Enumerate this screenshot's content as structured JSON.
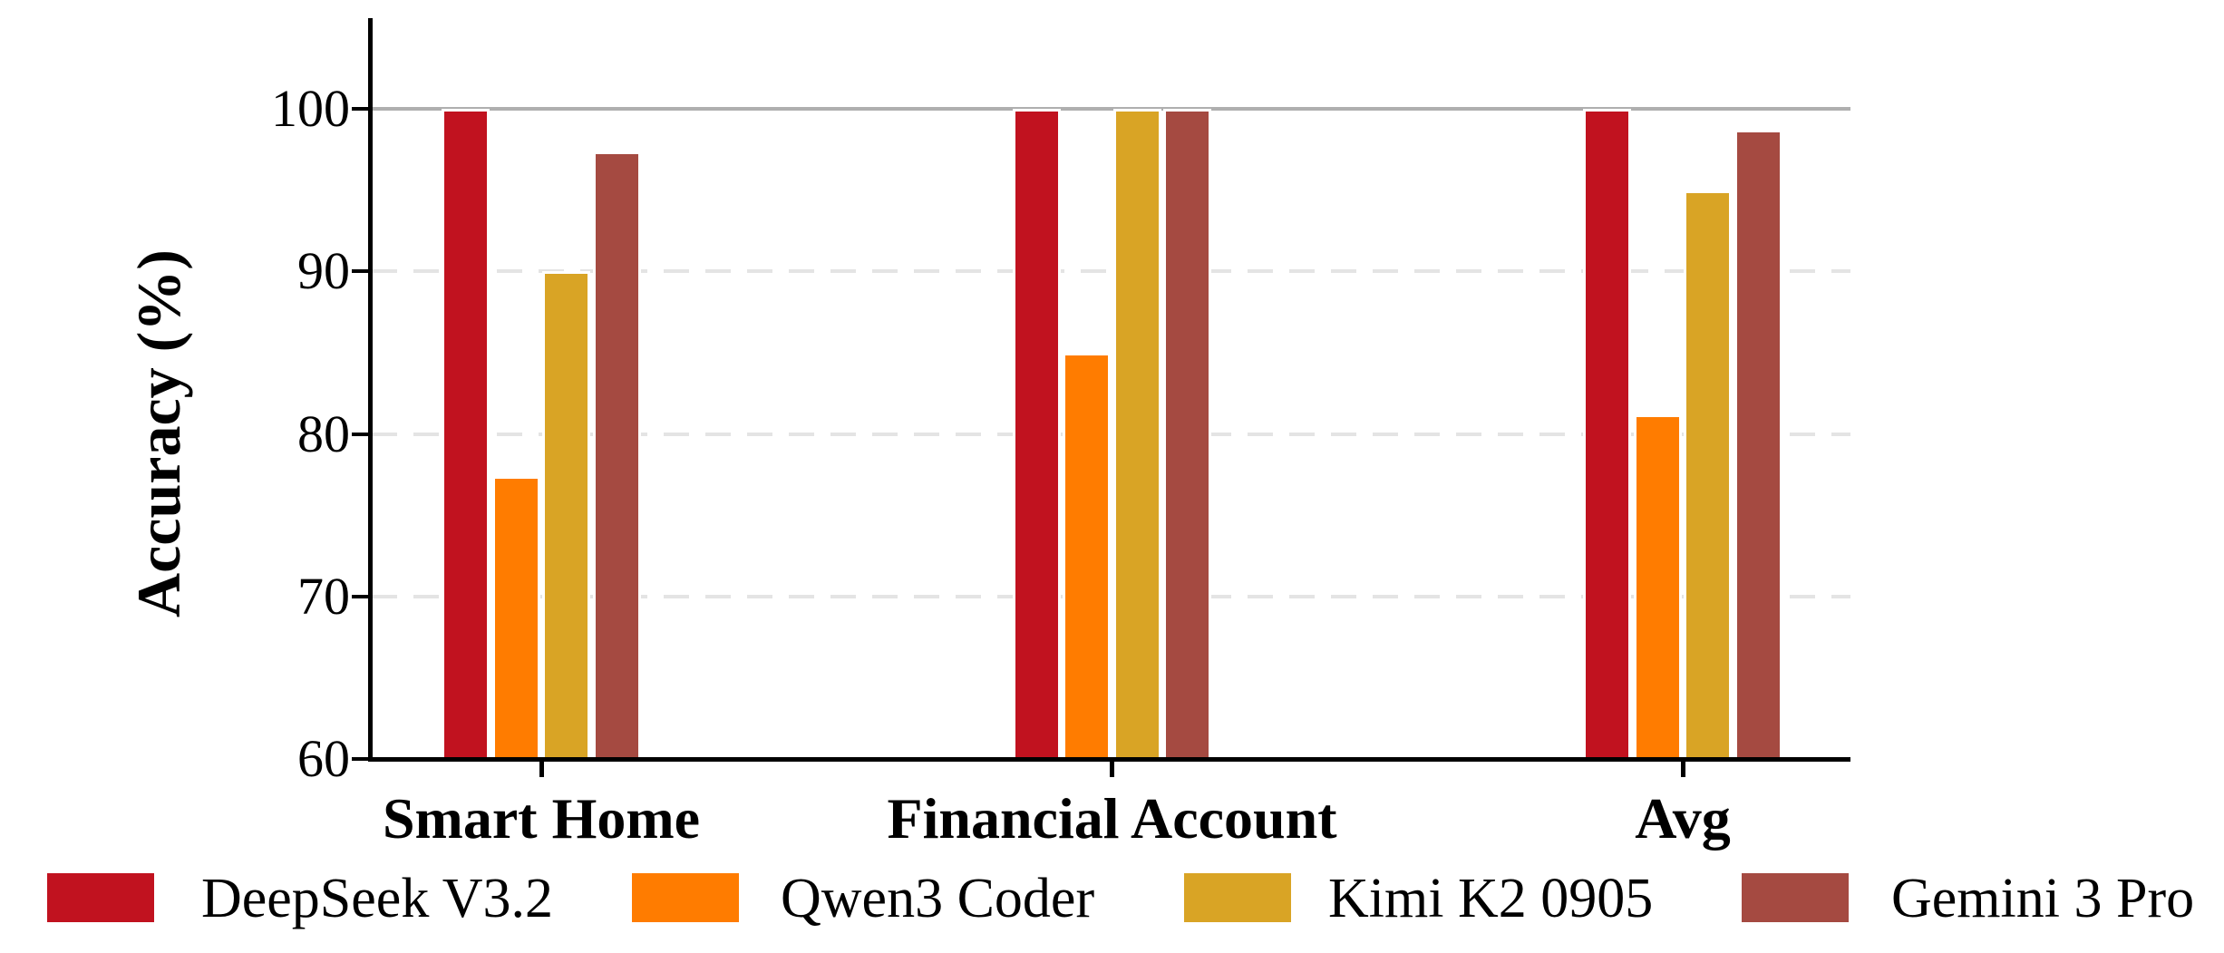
{
  "chart_data": {
    "type": "bar",
    "title": "",
    "xlabel": "",
    "ylabel": "Accuracy (%)",
    "ylim": [
      60,
      105
    ],
    "yticks": [
      60,
      70,
      80,
      90,
      100
    ],
    "categories": [
      "Smart Home",
      "Financial Account",
      "Avg"
    ],
    "series": [
      {
        "name": "DeepSeek V3.2",
        "color": "#C1121F",
        "values": [
          100.0,
          100.0,
          100.0
        ]
      },
      {
        "name": "Qwen3 Coder",
        "color": "#FF7C00",
        "values": [
          77.4,
          85.0,
          81.2
        ]
      },
      {
        "name": "Kimi K2 0905",
        "color": "#D9A425",
        "values": [
          90.0,
          100.0,
          95.0
        ]
      },
      {
        "name": "Gemini 3 Pro",
        "color": "#A54A41",
        "values": [
          97.4,
          100.0,
          98.7
        ]
      }
    ],
    "legend_position": "bottom",
    "grid": {
      "solid_line_at": 100,
      "dashed_lines_at": [
        70,
        80,
        90
      ],
      "solid_color": "#AFAFAF",
      "dashed_color": "#E4E4E4"
    },
    "axis_color": "#000000",
    "background_color": "#FFFFFF"
  }
}
